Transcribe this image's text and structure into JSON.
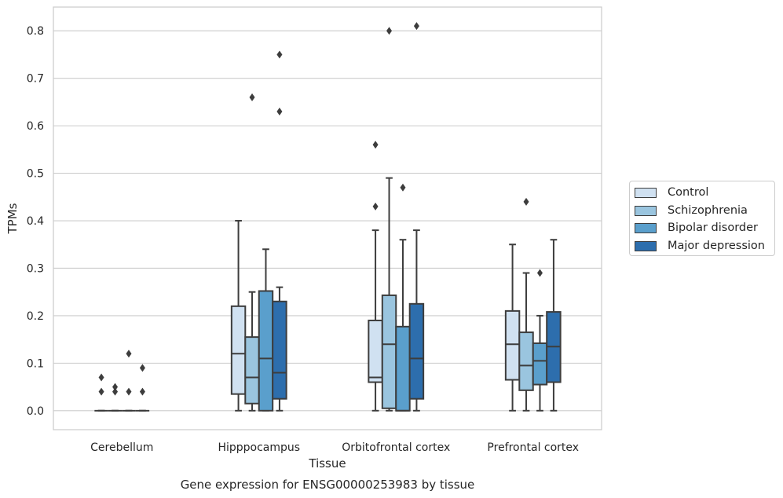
{
  "chart_data": {
    "type": "boxplot",
    "title": "Gene expression for ENSG00000253983 by tissue",
    "xlabel": "Tissue",
    "ylabel": "TPMs",
    "ylim": [
      -0.04,
      0.85
    ],
    "yticks": [
      "0.0",
      "0.1",
      "0.2",
      "0.3",
      "0.4",
      "0.5",
      "0.6",
      "0.7",
      "0.8"
    ],
    "grid": true,
    "legend_placement": "right",
    "categories": [
      "Cerebellum",
      "Hipppocampus",
      "Orbitofrontal cortex",
      "Prefrontal cortex"
    ],
    "series": [
      {
        "name": "Control",
        "color": "#d0e1f1",
        "boxes": [
          {
            "min": 0.0,
            "q1": 0.0,
            "median": 0.0,
            "q3": 0.0,
            "max": 0.0,
            "outliers": [
              0.04,
              0.07
            ]
          },
          {
            "min": 0.0,
            "q1": 0.035,
            "median": 0.12,
            "q3": 0.22,
            "max": 0.4,
            "outliers": []
          },
          {
            "min": 0.0,
            "q1": 0.06,
            "median": 0.07,
            "q3": 0.19,
            "max": 0.38,
            "outliers": [
              0.43,
              0.56
            ]
          },
          {
            "min": 0.0,
            "q1": 0.065,
            "median": 0.14,
            "q3": 0.21,
            "max": 0.35,
            "outliers": []
          }
        ]
      },
      {
        "name": "Schizophrenia",
        "color": "#9ac5df",
        "boxes": [
          {
            "min": 0.0,
            "q1": 0.0,
            "median": 0.0,
            "q3": 0.0,
            "max": 0.0,
            "outliers": [
              0.04,
              0.05
            ]
          },
          {
            "min": 0.0,
            "q1": 0.015,
            "median": 0.07,
            "q3": 0.155,
            "max": 0.25,
            "outliers": [
              0.66
            ]
          },
          {
            "min": 0.0,
            "q1": 0.005,
            "median": 0.14,
            "q3": 0.243,
            "max": 0.49,
            "outliers": [
              0.8
            ]
          },
          {
            "min": 0.0,
            "q1": 0.043,
            "median": 0.095,
            "q3": 0.165,
            "max": 0.29,
            "outliers": [
              0.44
            ]
          }
        ]
      },
      {
        "name": "Bipolar disorder",
        "color": "#5a9fcc",
        "boxes": [
          {
            "min": 0.0,
            "q1": 0.0,
            "median": 0.0,
            "q3": 0.0,
            "max": 0.0,
            "outliers": [
              0.04,
              0.12
            ]
          },
          {
            "min": 0.0,
            "q1": 0.0,
            "median": 0.11,
            "q3": 0.252,
            "max": 0.34,
            "outliers": []
          },
          {
            "min": 0.0,
            "q1": 0.0,
            "median": 0.0,
            "q3": 0.177,
            "max": 0.36,
            "outliers": [
              0.47
            ]
          },
          {
            "min": 0.0,
            "q1": 0.055,
            "median": 0.105,
            "q3": 0.142,
            "max": 0.2,
            "outliers": [
              0.29
            ]
          }
        ]
      },
      {
        "name": "Major depression",
        "color": "#2d6ead",
        "boxes": [
          {
            "min": 0.0,
            "q1": 0.0,
            "median": 0.0,
            "q3": 0.0,
            "max": 0.0,
            "outliers": [
              0.04,
              0.09
            ]
          },
          {
            "min": 0.0,
            "q1": 0.025,
            "median": 0.08,
            "q3": 0.23,
            "max": 0.26,
            "outliers": [
              0.63,
              0.75
            ]
          },
          {
            "min": 0.0,
            "q1": 0.025,
            "median": 0.11,
            "q3": 0.225,
            "max": 0.38,
            "outliers": [
              0.81
            ]
          },
          {
            "min": 0.0,
            "q1": 0.06,
            "median": 0.135,
            "q3": 0.208,
            "max": 0.36,
            "outliers": []
          }
        ]
      }
    ]
  }
}
